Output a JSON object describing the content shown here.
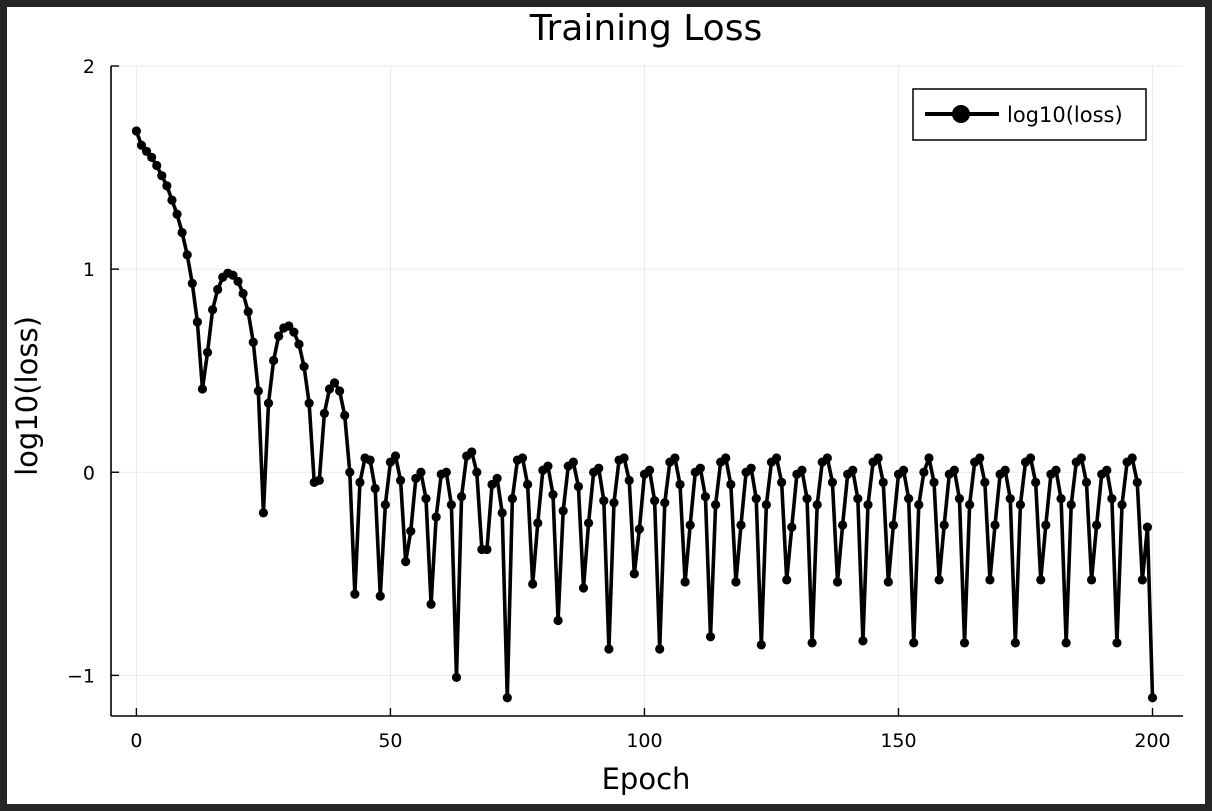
{
  "chart_data": {
    "type": "line",
    "title": "Training Loss",
    "xlabel": "Epoch",
    "ylabel": "log10(loss)",
    "xlim": [
      -5,
      206
    ],
    "ylim": [
      -1.2,
      2.0
    ],
    "xticks": [
      0,
      50,
      100,
      150,
      200
    ],
    "xtick_labels": [
      "0",
      "50",
      "100",
      "150",
      "200"
    ],
    "yticks": [
      -1,
      0,
      1,
      2
    ],
    "ytick_labels": [
      "−1",
      "0",
      "1",
      "2"
    ],
    "grid": true,
    "legend_position": "top-right",
    "series": [
      {
        "name": "log10(loss)",
        "color": "#000000",
        "marker": "circle",
        "x": [
          0,
          1,
          2,
          3,
          4,
          5,
          6,
          7,
          8,
          9,
          10,
          11,
          12,
          13,
          14,
          15,
          16,
          17,
          18,
          19,
          20,
          21,
          22,
          23,
          24,
          25,
          26,
          27,
          28,
          29,
          30,
          31,
          32,
          33,
          34,
          35,
          36,
          37,
          38,
          39,
          40,
          41,
          42,
          43,
          44,
          45,
          46,
          47,
          48,
          49,
          50,
          51,
          52,
          53,
          54,
          55,
          56,
          57,
          58,
          59,
          60,
          61,
          62,
          63,
          64,
          65,
          66,
          67,
          68,
          69,
          70,
          71,
          72,
          73,
          74,
          75,
          76,
          77,
          78,
          79,
          80,
          81,
          82,
          83,
          84,
          85,
          86,
          87,
          88,
          89,
          90,
          91,
          92,
          93,
          94,
          95,
          96,
          97,
          98,
          99,
          100,
          101,
          102,
          103,
          104,
          105,
          106,
          107,
          108,
          109,
          110,
          111,
          112,
          113,
          114,
          115,
          116,
          117,
          118,
          119,
          120,
          121,
          122,
          123,
          124,
          125,
          126,
          127,
          128,
          129,
          130,
          131,
          132,
          133,
          134,
          135,
          136,
          137,
          138,
          139,
          140,
          141,
          142,
          143,
          144,
          145,
          146,
          147,
          148,
          149,
          150,
          151,
          152,
          153,
          154,
          155,
          156,
          157,
          158,
          159,
          160,
          161,
          162,
          163,
          164,
          165,
          166,
          167,
          168,
          169,
          170,
          171,
          172,
          173,
          174,
          175,
          176,
          177,
          178,
          179,
          180,
          181,
          182,
          183,
          184,
          185,
          186,
          187,
          188,
          189,
          190,
          191,
          192,
          193,
          194,
          195,
          196,
          197,
          198,
          199,
          200
        ],
        "y": [
          1.68,
          1.61,
          1.58,
          1.55,
          1.51,
          1.46,
          1.41,
          1.34,
          1.27,
          1.18,
          1.07,
          0.93,
          0.74,
          0.41,
          0.59,
          0.8,
          0.9,
          0.96,
          0.98,
          0.97,
          0.94,
          0.88,
          0.79,
          0.64,
          0.4,
          -0.2,
          0.34,
          0.55,
          0.67,
          0.71,
          0.72,
          0.69,
          0.63,
          0.52,
          0.34,
          -0.05,
          -0.04,
          0.29,
          0.41,
          0.44,
          0.4,
          0.28,
          0.0,
          -0.6,
          -0.05,
          0.07,
          0.06,
          -0.08,
          -0.61,
          -0.16,
          0.05,
          0.08,
          -0.04,
          -0.44,
          -0.29,
          -0.03,
          0.0,
          -0.13,
          -0.65,
          -0.22,
          -0.01,
          0.0,
          -0.16,
          -1.01,
          -0.12,
          0.08,
          0.1,
          0.0,
          -0.38,
          -0.38,
          -0.06,
          -0.03,
          -0.2,
          -1.11,
          -0.13,
          0.06,
          0.07,
          -0.06,
          -0.55,
          -0.25,
          0.01,
          0.03,
          -0.11,
          -0.73,
          -0.19,
          0.03,
          0.05,
          -0.07,
          -0.57,
          -0.25,
          0.0,
          0.02,
          -0.14,
          -0.87,
          -0.15,
          0.06,
          0.07,
          -0.04,
          -0.5,
          -0.28,
          -0.01,
          0.01,
          -0.14,
          -0.87,
          -0.15,
          0.05,
          0.07,
          -0.06,
          -0.54,
          -0.26,
          0.0,
          0.02,
          -0.12,
          -0.81,
          -0.16,
          0.05,
          0.07,
          -0.06,
          -0.54,
          -0.26,
          0.0,
          0.02,
          -0.13,
          -0.85,
          -0.16,
          0.05,
          0.07,
          -0.05,
          -0.53,
          -0.27,
          -0.01,
          0.01,
          -0.13,
          -0.84,
          -0.16,
          0.05,
          0.07,
          -0.05,
          -0.54,
          -0.26,
          -0.01,
          0.01,
          -0.13,
          -0.83,
          -0.16,
          0.05,
          0.07,
          -0.05,
          -0.54,
          -0.26,
          -0.01,
          0.01,
          -0.13,
          -0.84,
          -0.16,
          0.0,
          0.07,
          -0.05,
          -0.53,
          -0.26,
          -0.01,
          0.01,
          -0.13,
          -0.84,
          -0.16,
          0.05,
          0.07,
          -0.05,
          -0.53,
          -0.26,
          -0.01,
          0.01,
          -0.13,
          -0.84,
          -0.16,
          0.05,
          0.07,
          -0.05,
          -0.53,
          -0.26,
          -0.01,
          0.01,
          -0.13,
          -0.84,
          -0.16,
          0.05,
          0.07,
          -0.05,
          -0.53,
          -0.26,
          -0.01,
          0.01,
          -0.13,
          -0.84,
          -0.16,
          0.05,
          0.07,
          -0.05,
          -0.53,
          -0.27,
          -1.11
        ]
      }
    ]
  }
}
